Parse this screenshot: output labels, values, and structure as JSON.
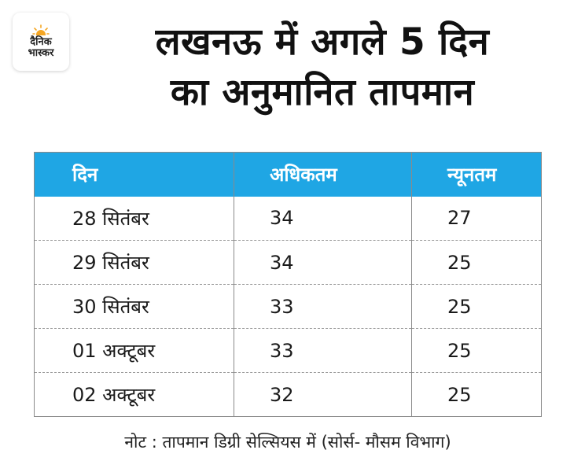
{
  "logo": {
    "line1": "दैनिक",
    "line2": "भास्कर"
  },
  "title": {
    "line1": "लखनऊ में अगले 5 दिन",
    "line2": "का अनुमानित तापमान"
  },
  "table": {
    "headers": [
      "दिन",
      "अधिकतम",
      "न्यूनतम"
    ],
    "rows": [
      [
        "28 सितंबर",
        "34",
        "27"
      ],
      [
        "29 सितंबर",
        "34",
        "25"
      ],
      [
        "30 सितंबर",
        "33",
        "25"
      ],
      [
        "01 अक्टूबर",
        "33",
        "25"
      ],
      [
        "02 अक्टूबर",
        "32",
        "25"
      ]
    ]
  },
  "note": "नोट : तापमान डिग्री सेल्सियस में   (सोर्स- मौसम विभाग)",
  "colors": {
    "header_bg": "#1fa6e4",
    "logo_sun": "#f5a623"
  }
}
